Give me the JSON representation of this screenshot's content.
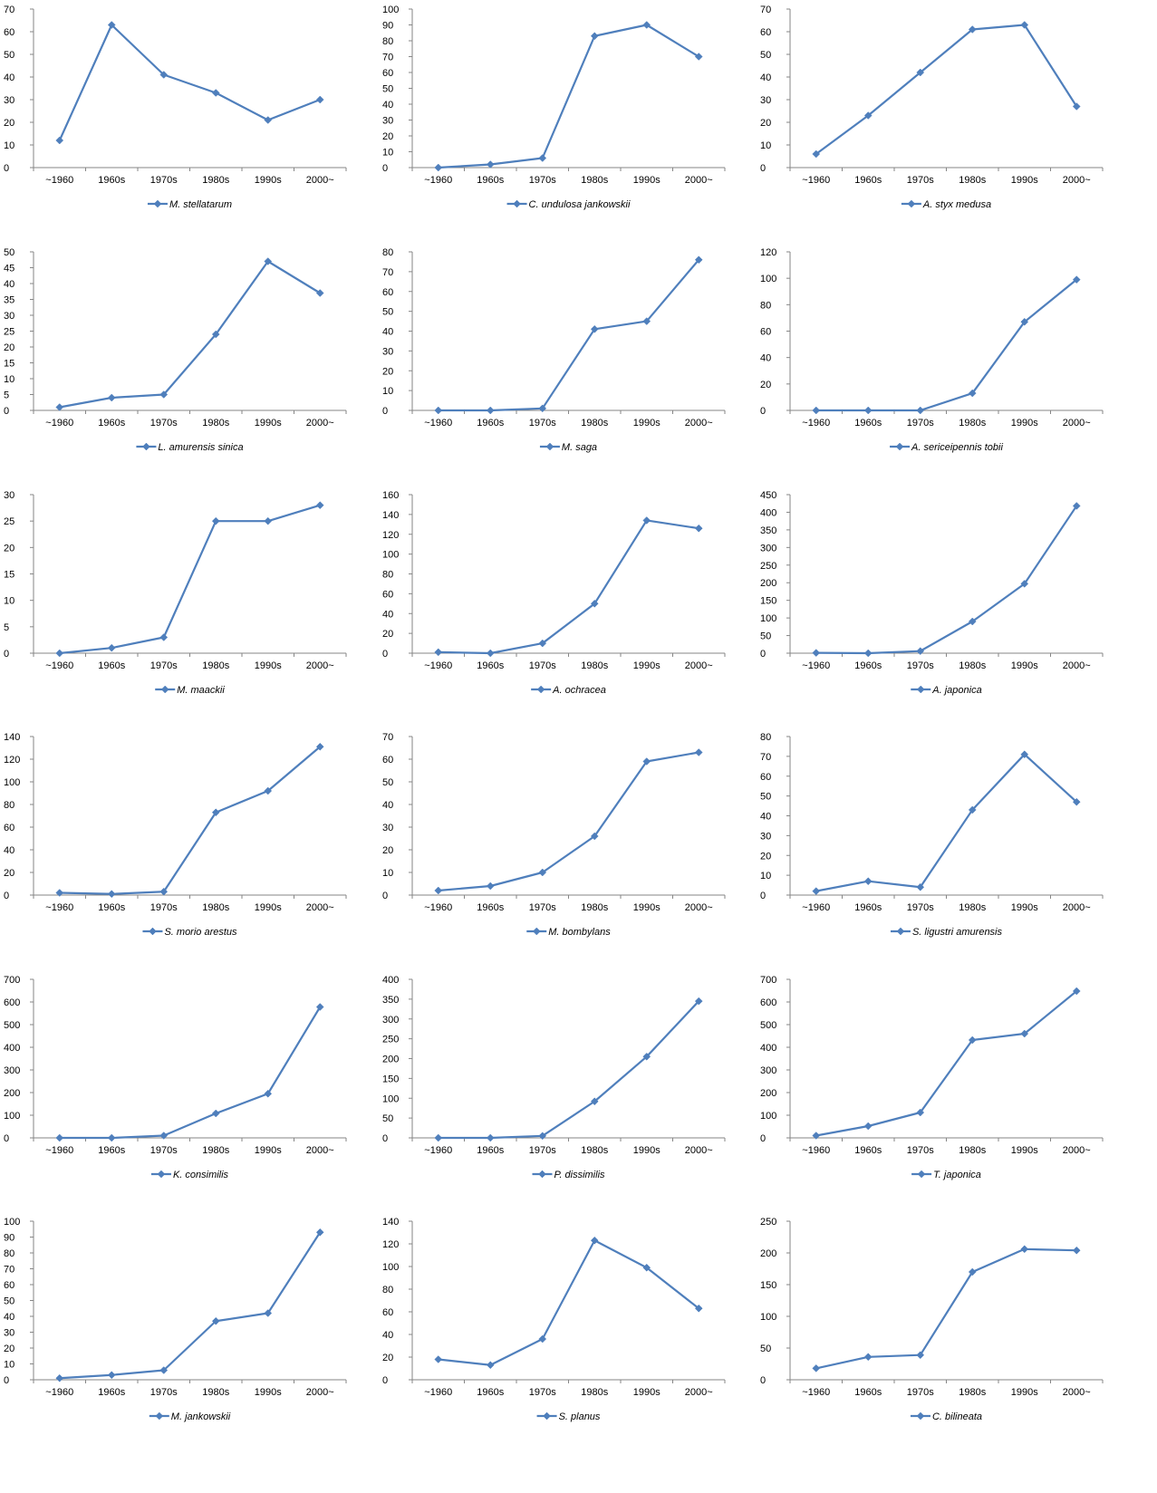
{
  "chart_data": [
    {
      "type": "line",
      "categories": [
        "~1960",
        "1960s",
        "1970s",
        "1980s",
        "1990s",
        "2000~"
      ],
      "series": [
        {
          "name": "M. stellatarum",
          "values": [
            12,
            63,
            41,
            33,
            21,
            30
          ]
        }
      ],
      "ylim": [
        0,
        70
      ],
      "yticks": [
        0,
        10,
        20,
        30,
        40,
        50,
        60,
        70
      ],
      "legend": "bottom",
      "color": "#4f7fbc"
    },
    {
      "type": "line",
      "categories": [
        "~1960",
        "1960s",
        "1970s",
        "1980s",
        "1990s",
        "2000~"
      ],
      "series": [
        {
          "name": "C. undulosa jankowskii",
          "values": [
            0,
            2,
            6,
            83,
            90,
            70
          ]
        }
      ],
      "ylim": [
        0,
        100
      ],
      "yticks": [
        0,
        10,
        20,
        30,
        40,
        50,
        60,
        70,
        80,
        90,
        100
      ],
      "legend": "bottom",
      "color": "#4f7fbc"
    },
    {
      "type": "line",
      "categories": [
        "~1960",
        "1960s",
        "1970s",
        "1980s",
        "1990s",
        "2000~"
      ],
      "series": [
        {
          "name": "A. styx medusa",
          "values": [
            6,
            23,
            42,
            61,
            63,
            27
          ]
        }
      ],
      "ylim": [
        0,
        70
      ],
      "yticks": [
        0,
        10,
        20,
        30,
        40,
        50,
        60,
        70
      ],
      "legend": "bottom",
      "color": "#4f7fbc"
    },
    {
      "type": "line",
      "categories": [
        "~1960",
        "1960s",
        "1970s",
        "1980s",
        "1990s",
        "2000~"
      ],
      "series": [
        {
          "name": "L. amurensis sinica",
          "values": [
            1,
            4,
            5,
            24,
            47,
            37
          ]
        }
      ],
      "ylim": [
        0,
        50
      ],
      "yticks": [
        0,
        5,
        10,
        15,
        20,
        25,
        30,
        35,
        40,
        45,
        50
      ],
      "legend": "bottom",
      "color": "#4f7fbc"
    },
    {
      "type": "line",
      "categories": [
        "~1960",
        "1960s",
        "1970s",
        "1980s",
        "1990s",
        "2000~"
      ],
      "series": [
        {
          "name": "M. saga",
          "values": [
            0,
            0,
            1,
            41,
            45,
            76
          ]
        }
      ],
      "ylim": [
        0,
        80
      ],
      "yticks": [
        0,
        10,
        20,
        30,
        40,
        50,
        60,
        70,
        80
      ],
      "legend": "bottom",
      "color": "#4f7fbc"
    },
    {
      "type": "line",
      "categories": [
        "~1960",
        "1960s",
        "1970s",
        "1980s",
        "1990s",
        "2000~"
      ],
      "series": [
        {
          "name": "A. sericeipennis tobii",
          "values": [
            0,
            0,
            0,
            13,
            67,
            99
          ]
        }
      ],
      "ylim": [
        0,
        120
      ],
      "yticks": [
        0,
        20,
        40,
        60,
        80,
        100,
        120
      ],
      "legend": "bottom",
      "color": "#4f7fbc"
    },
    {
      "type": "line",
      "categories": [
        "~1960",
        "1960s",
        "1970s",
        "1980s",
        "1990s",
        "2000~"
      ],
      "series": [
        {
          "name": "M. maackii",
          "values": [
            0,
            1,
            3,
            25,
            25,
            28
          ]
        }
      ],
      "ylim": [
        0,
        30
      ],
      "yticks": [
        0,
        5,
        10,
        15,
        20,
        25,
        30
      ],
      "legend": "bottom",
      "color": "#4f7fbc"
    },
    {
      "type": "line",
      "categories": [
        "~1960",
        "1960s",
        "1970s",
        "1980s",
        "1990s",
        "2000~"
      ],
      "series": [
        {
          "name": "A. ochracea",
          "values": [
            1,
            0,
            10,
            50,
            134,
            126
          ]
        }
      ],
      "ylim": [
        0,
        160
      ],
      "yticks": [
        0,
        20,
        40,
        60,
        80,
        100,
        120,
        140,
        160
      ],
      "legend": "bottom",
      "color": "#4f7fbc"
    },
    {
      "type": "line",
      "categories": [
        "~1960",
        "1960s",
        "1970s",
        "1980s",
        "1990s",
        "2000~"
      ],
      "series": [
        {
          "name": "A. japonica",
          "values": [
            1,
            0,
            6,
            90,
            197,
            418
          ]
        }
      ],
      "ylim": [
        0,
        450
      ],
      "yticks": [
        0,
        50,
        100,
        150,
        200,
        250,
        300,
        350,
        400,
        450
      ],
      "legend": "bottom",
      "color": "#4f7fbc"
    },
    {
      "type": "line",
      "categories": [
        "~1960",
        "1960s",
        "1970s",
        "1980s",
        "1990s",
        "2000~"
      ],
      "series": [
        {
          "name": "S. morio arestus",
          "values": [
            2,
            1,
            3,
            73,
            92,
            131
          ]
        }
      ],
      "ylim": [
        0,
        140
      ],
      "yticks": [
        0,
        20,
        40,
        60,
        80,
        100,
        120,
        140
      ],
      "legend": "bottom",
      "color": "#4f7fbc"
    },
    {
      "type": "line",
      "categories": [
        "~1960",
        "1960s",
        "1970s",
        "1980s",
        "1990s",
        "2000~"
      ],
      "series": [
        {
          "name": "M. bombylans",
          "values": [
            2,
            4,
            10,
            26,
            59,
            63
          ]
        }
      ],
      "ylim": [
        0,
        70
      ],
      "yticks": [
        0,
        10,
        20,
        30,
        40,
        50,
        60,
        70
      ],
      "legend": "bottom",
      "color": "#4f7fbc"
    },
    {
      "type": "line",
      "categories": [
        "~1960",
        "1960s",
        "1970s",
        "1980s",
        "1990s",
        "2000~"
      ],
      "series": [
        {
          "name": "S. ligustri amurensis",
          "values": [
            2,
            7,
            4,
            43,
            71,
            47
          ]
        }
      ],
      "ylim": [
        0,
        80
      ],
      "yticks": [
        0,
        10,
        20,
        30,
        40,
        50,
        60,
        70,
        80
      ],
      "legend": "bottom",
      "color": "#4f7fbc"
    },
    {
      "type": "line",
      "categories": [
        "~1960",
        "1960s",
        "1970s",
        "1980s",
        "1990s",
        "2000~"
      ],
      "series": [
        {
          "name": "K. consimilis",
          "values": [
            0,
            0,
            10,
            108,
            195,
            578
          ]
        }
      ],
      "ylim": [
        0,
        700
      ],
      "yticks": [
        0,
        100,
        200,
        300,
        400,
        500,
        600,
        700
      ],
      "legend": "bottom",
      "color": "#4f7fbc"
    },
    {
      "type": "line",
      "categories": [
        "~1960",
        "1960s",
        "1970s",
        "1980s",
        "1990s",
        "2000~"
      ],
      "series": [
        {
          "name": "P. dissimilis",
          "values": [
            0,
            0,
            5,
            92,
            205,
            345
          ]
        }
      ],
      "ylim": [
        0,
        400
      ],
      "yticks": [
        0,
        50,
        100,
        150,
        200,
        250,
        300,
        350,
        400
      ],
      "legend": "bottom",
      "color": "#4f7fbc"
    },
    {
      "type": "line",
      "categories": [
        "~1960",
        "1960s",
        "1970s",
        "1980s",
        "1990s",
        "2000~"
      ],
      "series": [
        {
          "name": "T. japonica",
          "values": [
            10,
            52,
            112,
            432,
            460,
            648
          ]
        }
      ],
      "ylim": [
        0,
        700
      ],
      "yticks": [
        0,
        100,
        200,
        300,
        400,
        500,
        600,
        700
      ],
      "legend": "bottom",
      "color": "#4f7fbc"
    },
    {
      "type": "line",
      "categories": [
        "~1960",
        "1960s",
        "1970s",
        "1980s",
        "1990s",
        "2000~"
      ],
      "series": [
        {
          "name": "M. jankowskii",
          "values": [
            1,
            3,
            6,
            37,
            42,
            93
          ]
        }
      ],
      "ylim": [
        0,
        100
      ],
      "yticks": [
        0,
        10,
        20,
        30,
        40,
        50,
        60,
        70,
        80,
        90,
        100
      ],
      "legend": "bottom",
      "color": "#4f7fbc"
    },
    {
      "type": "line",
      "categories": [
        "~1960",
        "1960s",
        "1970s",
        "1980s",
        "1990s",
        "2000~"
      ],
      "series": [
        {
          "name": "S. planus",
          "values": [
            18,
            13,
            36,
            123,
            99,
            63
          ]
        }
      ],
      "ylim": [
        0,
        140
      ],
      "yticks": [
        0,
        20,
        40,
        60,
        80,
        100,
        120,
        140
      ],
      "legend": "bottom",
      "color": "#4f7fbc"
    },
    {
      "type": "line",
      "categories": [
        "~1960",
        "1960s",
        "1970s",
        "1980s",
        "1990s",
        "2000~"
      ],
      "series": [
        {
          "name": "C. bilineata",
          "values": [
            18,
            36,
            39,
            170,
            206,
            204
          ]
        }
      ],
      "ylim": [
        0,
        250
      ],
      "yticks": [
        0,
        50,
        100,
        150,
        200,
        250
      ],
      "legend": "bottom",
      "color": "#4f7fbc"
    }
  ]
}
